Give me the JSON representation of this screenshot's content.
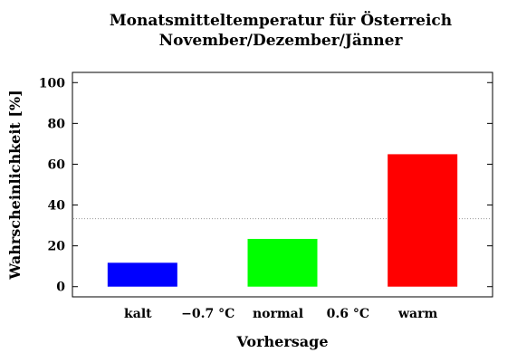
{
  "chart_data": {
    "type": "bar",
    "title": "Monatsmitteltemperatur für Österreich",
    "subtitle": "November/Dezember/Jänner",
    "xlabel": "Vorhersage",
    "ylabel": "Wahrscheinlichkeit [%]",
    "ylim": [
      -5,
      105
    ],
    "yticks": [
      "0",
      "20",
      "40",
      "60",
      "80",
      "100"
    ],
    "categories": [
      "kalt",
      "normal",
      "warm"
    ],
    "values": [
      11.7,
      23.4,
      64.9
    ],
    "colors": [
      "#0000ff",
      "#00ff00",
      "#ff0000"
    ],
    "threshold_labels": [
      "−0.7 °C",
      "0.6 °C"
    ],
    "reference_line": 33.3,
    "grid": false,
    "legend": "none"
  }
}
